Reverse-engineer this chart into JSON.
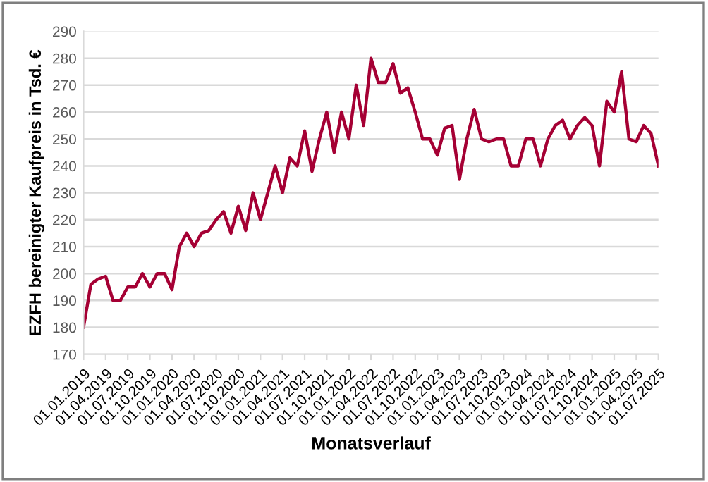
{
  "chart_data": {
    "type": "line",
    "xlabel": "Monatsverlauf",
    "ylabel": "EZFH bereinigter Kaufpreis in Tsd. €",
    "categories": [
      "01.01.2019",
      null,
      null,
      "01.04.2019",
      null,
      null,
      "01.07.2019",
      null,
      null,
      "01.10.2019",
      null,
      null,
      "01.01.2020",
      null,
      null,
      "01.04.2020",
      null,
      null,
      "01.07.2020",
      null,
      null,
      "01.10.2020",
      null,
      null,
      "01.01.2021",
      null,
      null,
      "01.04.2021",
      null,
      null,
      "01.07.2021",
      null,
      null,
      "01.10.2021",
      null,
      null,
      "01.01.2022",
      null,
      null,
      "01.04.2022",
      null,
      null,
      "01.07.2022",
      null,
      null,
      "01.10.2022",
      null,
      null,
      "01.01.2023",
      null,
      null,
      "01.04.2023",
      null,
      null,
      "01.07.2023",
      null,
      null,
      "01.10.2023",
      null,
      null,
      "01.01.2024",
      null,
      null,
      "01.04.2024",
      null,
      null,
      "01.07.2024",
      null,
      null,
      "01.10.2024",
      null,
      null,
      "01.01.2025",
      null,
      null,
      "01.04.2025",
      null,
      null,
      "01.07.2025"
    ],
    "series": [
      {
        "color": "#a50034",
        "values": [
          180,
          196,
          198,
          199,
          190,
          190,
          195,
          195,
          200,
          195,
          200,
          200,
          194,
          210,
          215,
          210,
          215,
          216,
          220,
          223,
          215,
          225,
          216,
          230,
          220,
          230,
          240,
          230,
          243,
          240,
          253,
          238,
          250,
          260,
          245,
          260,
          250,
          270,
          255,
          280,
          271,
          271,
          278,
          267,
          269,
          260,
          250,
          250,
          244,
          254,
          255,
          235,
          250,
          261,
          250,
          249,
          250,
          250,
          240,
          240,
          250,
          250,
          240,
          250,
          255,
          257,
          250,
          255,
          258,
          255,
          240,
          264,
          260,
          275,
          250,
          249,
          255,
          252,
          240
        ]
      }
    ],
    "ylim": [
      170,
      290
    ],
    "yticks": [
      170,
      180,
      190,
      200,
      210,
      220,
      230,
      240,
      250,
      260,
      270,
      280,
      290
    ],
    "grid": "y",
    "marker": "none",
    "line_style": "solid"
  }
}
